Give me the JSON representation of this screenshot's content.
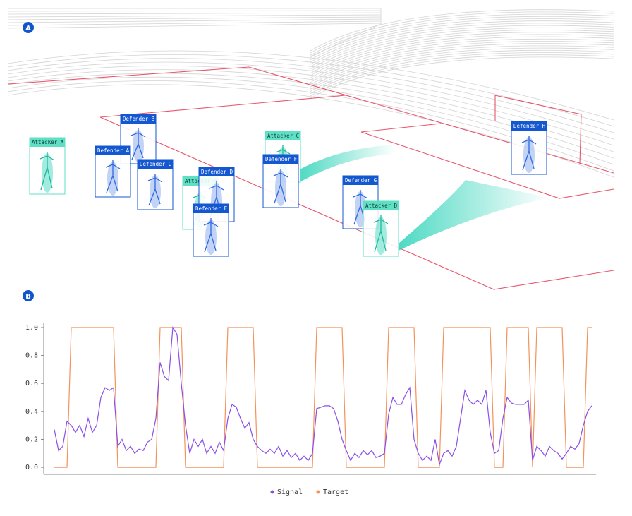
{
  "panels": {
    "a": "A",
    "b": "B"
  },
  "players": [
    {
      "label": "Attacker A",
      "team": "attacker"
    },
    {
      "label": "Defender B",
      "team": "defender"
    },
    {
      "label": "Defender A",
      "team": "defender"
    },
    {
      "label": "Defender C",
      "team": "defender"
    },
    {
      "label": "Attacker B",
      "team": "attacker"
    },
    {
      "label": "Defender D",
      "team": "defender"
    },
    {
      "label": "Defender E",
      "team": "defender"
    },
    {
      "label": "Attacker C",
      "team": "attacker"
    },
    {
      "label": "Defender F",
      "team": "defender"
    },
    {
      "label": "Defender G",
      "team": "defender"
    },
    {
      "label": "Attacker D",
      "team": "attacker"
    },
    {
      "label": "Defender H",
      "team": "defender"
    }
  ],
  "chart_data": {
    "type": "line",
    "ylim": [
      -0.05,
      1.03
    ],
    "yticks": [
      {
        "value": 0,
        "label": "0.0"
      },
      {
        "value": 0.2,
        "label": "0.2"
      },
      {
        "value": 0.4,
        "label": "0.4"
      },
      {
        "value": 0.6,
        "label": "0.6"
      },
      {
        "value": 0.8,
        "label": "0.8"
      },
      {
        "value": 1,
        "label": "1.0"
      }
    ],
    "series": [
      {
        "name": "Signal",
        "color": "#8a4fe8",
        "values": [
          0.27,
          0.12,
          0.15,
          0.33,
          0.3,
          0.25,
          0.3,
          0.22,
          0.35,
          0.25,
          0.3,
          0.5,
          0.57,
          0.55,
          0.57,
          0.15,
          0.2,
          0.12,
          0.15,
          0.1,
          0.13,
          0.12,
          0.18,
          0.2,
          0.35,
          0.75,
          0.65,
          0.62,
          1.0,
          0.95,
          0.6,
          0.3,
          0.1,
          0.2,
          0.15,
          0.2,
          0.1,
          0.15,
          0.1,
          0.18,
          0.12,
          0.35,
          0.45,
          0.43,
          0.35,
          0.28,
          0.32,
          0.2,
          0.15,
          0.12,
          0.1,
          0.13,
          0.1,
          0.15,
          0.08,
          0.12,
          0.07,
          0.1,
          0.05,
          0.08,
          0.05,
          0.1,
          0.42,
          0.43,
          0.44,
          0.44,
          0.42,
          0.33,
          0.2,
          0.12,
          0.05,
          0.1,
          0.07,
          0.12,
          0.09,
          0.12,
          0.07,
          0.08,
          0.1,
          0.38,
          0.5,
          0.45,
          0.45,
          0.52,
          0.57,
          0.2,
          0.1,
          0.05,
          0.08,
          0.05,
          0.2,
          0.02,
          0.1,
          0.12,
          0.08,
          0.15,
          0.35,
          0.55,
          0.48,
          0.45,
          0.48,
          0.45,
          0.55,
          0.25,
          0.1,
          0.12,
          0.35,
          0.5,
          0.46,
          0.45,
          0.45,
          0.45,
          0.48,
          0.05,
          0.15,
          0.12,
          0.08,
          0.15,
          0.12,
          0.1,
          0.06,
          0.1,
          0.15,
          0.13,
          0.17,
          0.3,
          0.4,
          0.44
        ]
      },
      {
        "name": "Target",
        "color": "#f4925a",
        "values": [
          0,
          0,
          0,
          0,
          1,
          1,
          1,
          1,
          1,
          1,
          1,
          1,
          1,
          1,
          1,
          0,
          0,
          0,
          0,
          0,
          0,
          0,
          0,
          0,
          0,
          1,
          1,
          1,
          1,
          1,
          1,
          0,
          0,
          0,
          0,
          0,
          0,
          0,
          0,
          0,
          0,
          1,
          1,
          1,
          1,
          1,
          1,
          1,
          0,
          0,
          0,
          0,
          0,
          0,
          0,
          0,
          0,
          0,
          0,
          0,
          0,
          0,
          1,
          1,
          1,
          1,
          1,
          1,
          1,
          0,
          0,
          0,
          0,
          0,
          0,
          0,
          0,
          0,
          0,
          1,
          1,
          1,
          1,
          1,
          1,
          1,
          0,
          0,
          0,
          0,
          0,
          0,
          1,
          1,
          1,
          1,
          1,
          1,
          1,
          1,
          1,
          1,
          1,
          1,
          0,
          0,
          0,
          1,
          1,
          1,
          1,
          1,
          1,
          0,
          1,
          1,
          1,
          1,
          1,
          1,
          1,
          0,
          0,
          0,
          0,
          0,
          1,
          1
        ]
      }
    ],
    "legend": "bottom"
  }
}
